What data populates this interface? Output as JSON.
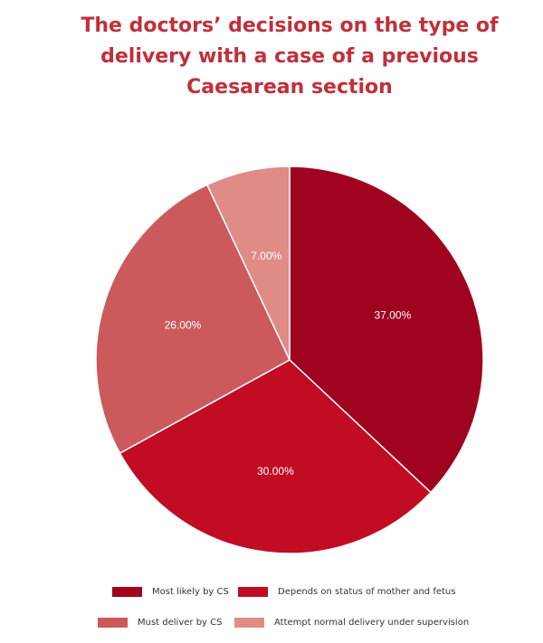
{
  "chart_data": {
    "type": "pie",
    "title_lines": [
      "The doctors’ decisions on the type of",
      "delivery with a case of a previous",
      "Caesarean section"
    ],
    "categories": [
      "Most likely by CS",
      "Depends on status of mother and fetus",
      "Must deliver by CS",
      "Attempt normal delivery under supervision"
    ],
    "values": [
      37.0,
      30.0,
      26.0,
      7.0
    ],
    "value_labels": [
      "37.00%",
      "30.00%",
      "26.00%",
      "7.00%"
    ],
    "colors": [
      "#a0031e",
      "#c20c24",
      "#cc5a5c",
      "#e08c86"
    ],
    "legend_position": "bottom"
  }
}
